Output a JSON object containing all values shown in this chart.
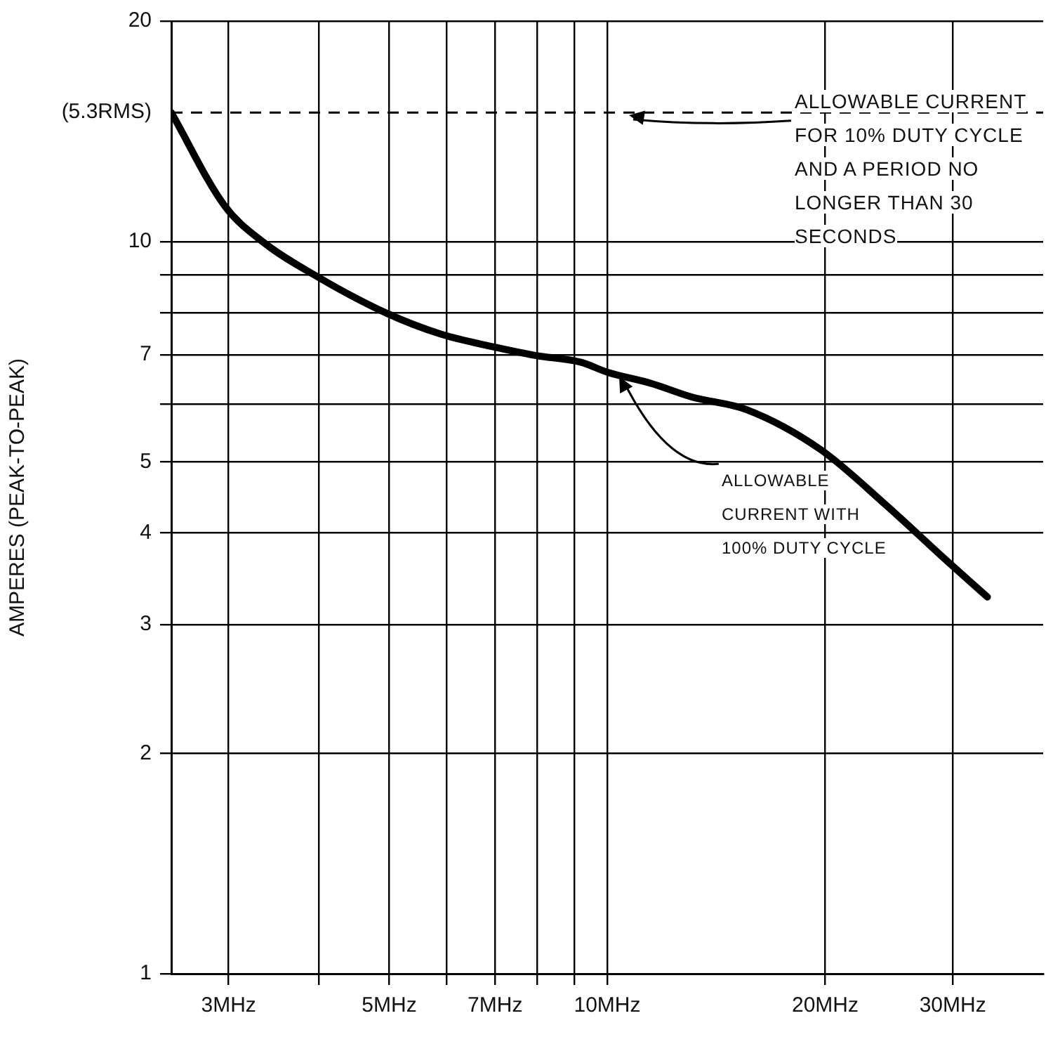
{
  "chart_data": {
    "type": "line",
    "ylabel": "AMPERES (PEAK-TO-PEAK)",
    "log": "xy",
    "grid": true,
    "legend": false,
    "marker": "none",
    "line_style": "solid",
    "xlim": [
      2.5,
      40
    ],
    "xticks": [
      {
        "value": 3,
        "label": "3MHz"
      },
      {
        "value": 4,
        "label": null
      },
      {
        "value": 5,
        "label": "5MHz"
      },
      {
        "value": 6,
        "label": null
      },
      {
        "value": 7,
        "label": "7MHz"
      },
      {
        "value": 8,
        "label": null
      },
      {
        "value": 9,
        "label": null
      },
      {
        "value": 10,
        "label": "10MHz"
      },
      {
        "value": 20,
        "label": "20MHz"
      },
      {
        "value": 30,
        "label": "30MHz"
      }
    ],
    "ylim": [
      1,
      20
    ],
    "yticks": [
      1,
      2,
      3,
      4,
      5,
      {
        "value": 6,
        "label": null
      },
      7,
      {
        "value": 8,
        "label": null
      },
      {
        "value": 9,
        "label": null
      },
      10,
      20
    ],
    "x": [
      2.5,
      2.96,
      3.34,
      3.98,
      4.96,
      5.9,
      6.96,
      7.95,
      9.2,
      10,
      11.5,
      13.1,
      15.6,
      19.7,
      24.3,
      29.3,
      33.5
    ],
    "series": [
      {
        "color": "#000000",
        "values": [
          15,
          11.2,
          10,
          8.95,
          7.98,
          7.47,
          7.18,
          6.99,
          6.84,
          6.63,
          6.4,
          6.13,
          5.89,
          5.2,
          4.36,
          3.68,
          3.27
        ]
      }
    ],
    "ref_lines": [
      {
        "axis": "y",
        "value": 15,
        "label": "(5.3RMS)",
        "line_style": "dashed",
        "color": "#000000"
      }
    ],
    "annotations": [
      {
        "text": "ALLOWABLE CURRENT FOR 10% DUTY CYCLE AND A PERIOD NO LONGER THAN 30 SECONDS",
        "x": 10.6,
        "y": 15
      },
      {
        "text": "ALLOWABLE CURRENT WITH 100% DUTY CYCLE",
        "x": 10.3,
        "y": 6.6
      }
    ]
  }
}
